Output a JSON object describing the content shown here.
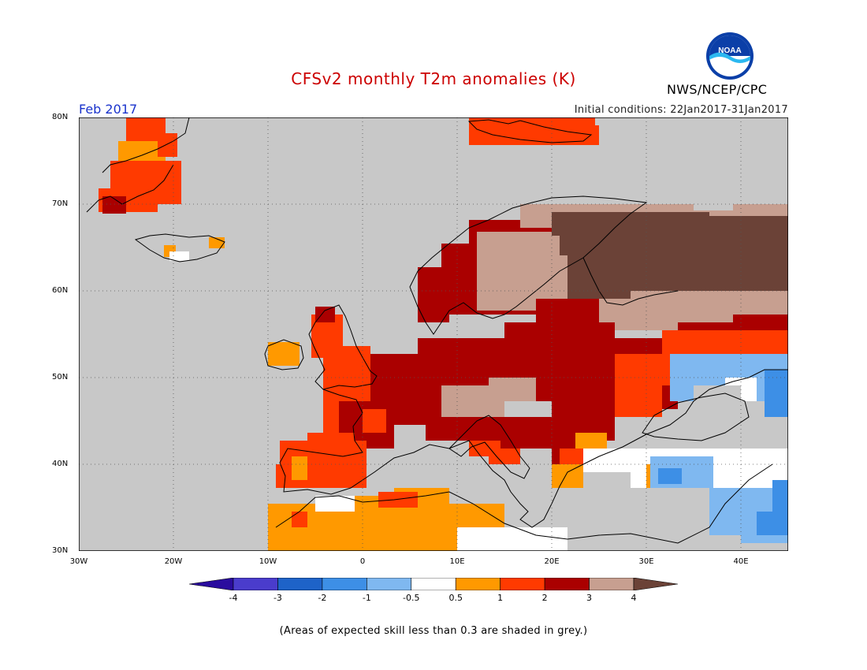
{
  "title": "CFSv2 monthly T2m anomalies (K)",
  "month_label": "Feb 2017",
  "initial_conditions": "Initial conditions: 22Jan2017-31Jan2017",
  "agency": "NWS/NCEP/CPC",
  "logo_text": "NOAA",
  "footnote": "(Areas of expected skill less than 0.3 are shaded in grey.)",
  "lat_labels": [
    "80N",
    "70N",
    "60N",
    "50N",
    "40N",
    "30N"
  ],
  "lon_labels": [
    "30W",
    "20W",
    "10W",
    "0",
    "10E",
    "20E",
    "30E",
    "40E"
  ],
  "colorbar": {
    "tick_labels": [
      "-4",
      "-3",
      "-2",
      "-1",
      "-0.5",
      "0.5",
      "1",
      "2",
      "3",
      "4"
    ],
    "colors": [
      "#2a0c9e",
      "#4a3ccc",
      "#1e63c8",
      "#3d8fe6",
      "#7fb8f0",
      "#ffffff",
      "#ff9900",
      "#ff3a00",
      "#aa0000",
      "#c79f90",
      "#6b4237"
    ]
  },
  "map_colors": {
    "grey": "#c8c8c8",
    "white": "#ffffff",
    "orange": "#ff9900",
    "red_orange": "#ff3a00",
    "dark_red": "#aa0000",
    "tan": "#c79f90",
    "brown": "#6b4237",
    "light_blue": "#7fb8f0",
    "mid_blue": "#3d8fe6",
    "blue": "#1e63c8"
  }
}
